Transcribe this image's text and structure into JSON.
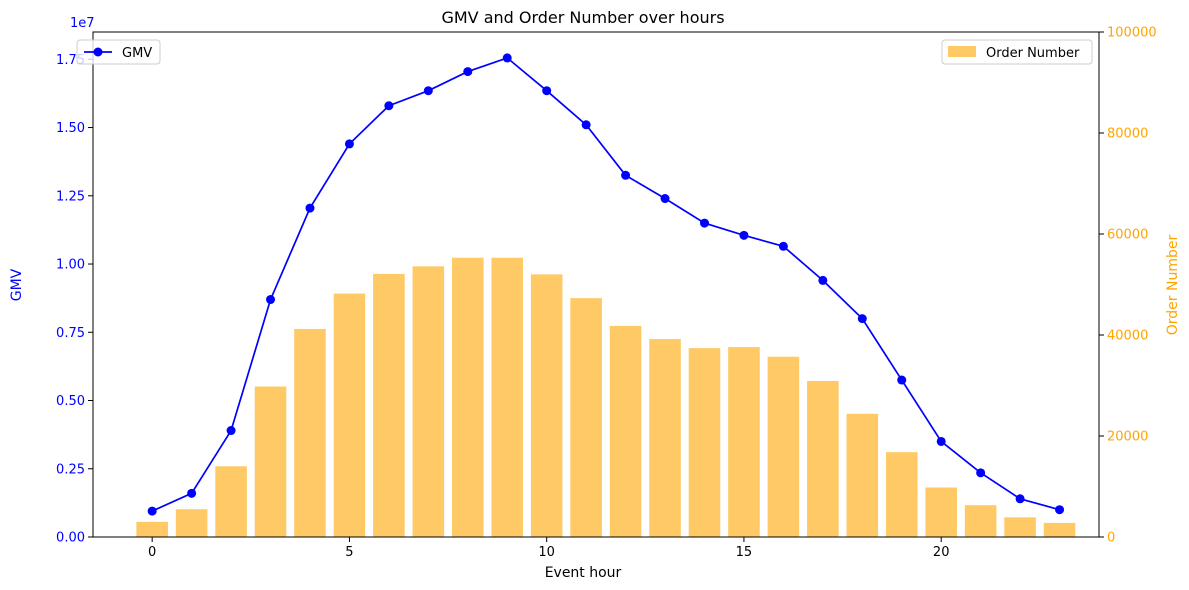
{
  "chart_data": {
    "type": "bar+line",
    "title": "GMV and Order Number over hours",
    "xlabel": "Event hour",
    "x": [
      0,
      1,
      2,
      3,
      4,
      5,
      6,
      7,
      8,
      9,
      10,
      11,
      12,
      13,
      14,
      15,
      16,
      17,
      18,
      19,
      20,
      21,
      22,
      23
    ],
    "xlim": [
      -1.5,
      24
    ],
    "xticks": [
      0,
      5,
      10,
      15,
      20
    ],
    "left_axis": {
      "label": "GMV",
      "color": "#0000ff",
      "ylim": [
        0,
        18500000
      ],
      "ticks": [
        0,
        2500000,
        5000000,
        7500000,
        10000000,
        12500000,
        15000000,
        17500000
      ],
      "tick_labels": [
        "0.00",
        "0.25",
        "0.50",
        "0.75",
        "1.00",
        "1.25",
        "1.50",
        "1.75"
      ],
      "offset_label": "1e7"
    },
    "right_axis": {
      "label": "Order Number",
      "color": "#ffa500",
      "ylim": [
        0,
        100000
      ],
      "ticks": [
        0,
        20000,
        40000,
        60000,
        80000,
        100000
      ],
      "tick_labels": [
        "0",
        "20000",
        "40000",
        "60000",
        "80000",
        "100000"
      ]
    },
    "series": [
      {
        "name": "GMV",
        "type": "line",
        "axis": "left",
        "color": "#0000ff",
        "values": [
          950000,
          1600000,
          3900000,
          8700000,
          12050000,
          14400000,
          15800000,
          16350000,
          17050000,
          17550000,
          16350000,
          15100000,
          13250000,
          12400000,
          11500000,
          11050000,
          10650000,
          9400000,
          8000000,
          5750000,
          3500000,
          2350000,
          1400000,
          1000000
        ]
      },
      {
        "name": "Order Number",
        "type": "bar",
        "axis": "right",
        "color": "#ffa500",
        "opacity": 0.6,
        "values": [
          3000,
          5500,
          14000,
          29800,
          41200,
          48200,
          52100,
          53600,
          55300,
          55300,
          52000,
          47300,
          41800,
          39200,
          37400,
          37600,
          35700,
          30900,
          24400,
          16800,
          9800,
          6300,
          3900,
          2800
        ]
      }
    ],
    "legends": [
      {
        "series": "GMV",
        "placement": "top-left"
      },
      {
        "series": "Order Number",
        "placement": "top-right"
      }
    ],
    "grid": false
  }
}
